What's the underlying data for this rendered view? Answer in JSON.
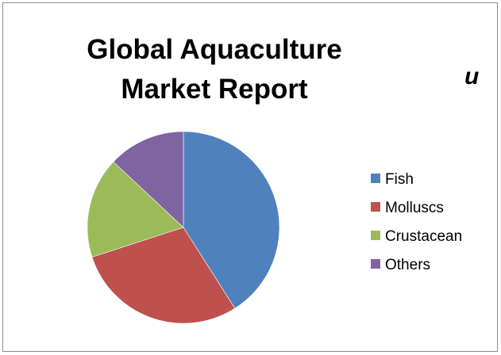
{
  "chart_data": {
    "type": "pie",
    "title_lines": [
      "Global Aquaculture",
      "Market Report"
    ],
    "categories": [
      "Fish",
      "Molluscs",
      "Crustacean",
      "Others"
    ],
    "values": [
      41,
      29,
      17,
      13
    ],
    "colors": [
      "#4f81bd",
      "#c0504d",
      "#9bbb59",
      "#8064a2"
    ],
    "start_angle": "12 o'clock",
    "direction": "clockwise",
    "legend_position": "right"
  },
  "cut_off_text": "и"
}
